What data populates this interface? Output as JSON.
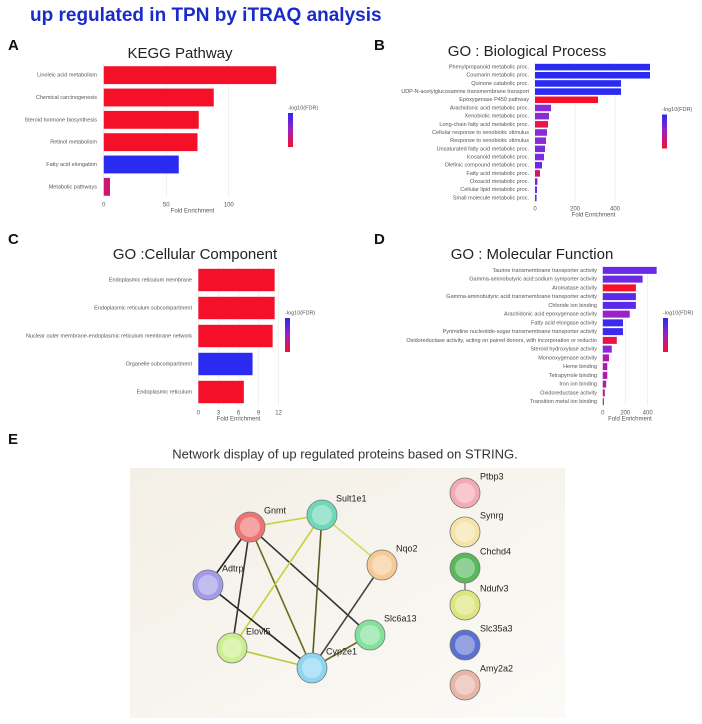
{
  "figure_title": "up regulated in TPN by iTRAQ analysis",
  "chart_data": [
    {
      "type": "barh",
      "panel_label": "A",
      "title": "KEGG Pathway",
      "xlabel": "Fold Enrichment",
      "colorbar_label": "-log10(FDR)",
      "categories": [
        "Linoleic acid metabolism",
        "Chemical carcinogenesis",
        "Steroid hormone biosynthesis",
        "Retinol metabolism",
        "Fatty acid elongation",
        "Metabolic pathways"
      ],
      "values": [
        138,
        88,
        76,
        75,
        60,
        5
      ],
      "colors": [
        "#f5102a",
        "#f5102a",
        "#f5102a",
        "#f5102a",
        "#2a2af0",
        "#d0156e"
      ],
      "xlim": [
        -3,
        145
      ],
      "xticks": [
        0,
        50,
        100
      ],
      "grid": true
    },
    {
      "type": "barh",
      "panel_label": "B",
      "title": "GO : Biological Process",
      "xlabel": "Fold Enrichment",
      "colorbar_label": "-log10(FDR)",
      "categories": [
        "Phenylpropanoid metabolic proc.",
        "Coumarin metabolic proc.",
        "Quinone catabolic proc.",
        "UDP-N-acetylglucosamine transmembrane transport",
        "Epoxygenase P450 pathway",
        "Arachidonic acid metabolic proc.",
        "Xenobiotic metabolic proc.",
        "Long-chain fatty acid metabolic proc.",
        "Cellular response to xenobiotic stimulus",
        "Response to xenobiotic stimulus",
        "Unsaturated fatty acid metabolic proc.",
        "Icosanoid metabolic proc.",
        "Olefinic compound metabolic proc.",
        "Fatty acid metabolic proc.",
        "Oxoacid metabolic proc.",
        "Cellular lipid metabolic proc.",
        "Small molecule metabolic proc."
      ],
      "values": [
        575,
        575,
        430,
        430,
        315,
        80,
        70,
        65,
        60,
        55,
        50,
        45,
        35,
        25,
        12,
        10,
        8
      ],
      "colors": [
        "#2a2af0",
        "#2a2af0",
        "#2a2af0",
        "#2a2af0",
        "#f5102a",
        "#8a2ad8",
        "#8a2ad8",
        "#e8154a",
        "#8a2ad8",
        "#8a2ad8",
        "#7a2ae0",
        "#7a2ae0",
        "#6a2ae5",
        "#d0156e",
        "#6a2ae5",
        "#6a2ae5",
        "#6a2ae5"
      ],
      "xlim": [
        -15,
        600
      ],
      "xticks": [
        0,
        200,
        400
      ],
      "grid": true
    },
    {
      "type": "barh",
      "panel_label": "C",
      "title": "GO :Cellular Component",
      "xlabel": "Fold Enrichment",
      "colorbar_label": "-log10(FDR)",
      "categories": [
        "Endoplasmic reticulum membrane",
        "Endoplasmic reticulum subcompartment",
        "Nuclear outer membrane-endoplasmic reticulum membrane network",
        "Organelle subcompartment",
        "Endoplasmic reticulum"
      ],
      "values": [
        11.4,
        11.4,
        11.1,
        8.1,
        6.8
      ],
      "colors": [
        "#f5102a",
        "#f5102a",
        "#f5102a",
        "#2a2af0",
        "#f5102a"
      ],
      "xlim": [
        -0.5,
        12.5
      ],
      "xticks": [
        0,
        3,
        6,
        9,
        12
      ],
      "grid": true
    },
    {
      "type": "barh",
      "panel_label": "D",
      "title": "GO : Molecular Function",
      "xlabel": "Fold Enrichment",
      "colorbar_label": "-log10(FDR)",
      "categories": [
        "Taurine transmembrane transporter activity",
        "Gamma-aminobutyric acid:sodium symporter activity",
        "Aromatase activity",
        "Gamma-aminobutyric acid transmembrane transporter activity",
        "Chloride ion binding",
        "Arachidonic acid epoxygenase activity",
        "Fatty acid elongase activity",
        "Pyrimidine nucleotide-sugar transmembrane transporter activity",
        "Oxidoreductase activity, acting on paired donors, with incorporation or reductio",
        "Steroid hydroxylase activity",
        "Monooxygenase activity",
        "Heme binding",
        "Tetrapyrrole binding",
        "Iron ion binding",
        "Oxidoreductase activity",
        "Transition metal ion binding"
      ],
      "values": [
        480,
        355,
        295,
        295,
        295,
        240,
        180,
        180,
        125,
        80,
        55,
        40,
        40,
        30,
        18,
        10
      ],
      "colors": [
        "#6a2ae5",
        "#6a2ae5",
        "#f5102a",
        "#5a2ae8",
        "#5a2ae8",
        "#9a20c8",
        "#3a2aee",
        "#3a2aee",
        "#e8154a",
        "#8a2ad8",
        "#b018b0",
        "#b018b0",
        "#b018b0",
        "#b018b0",
        "#c01890",
        "#c01890"
      ],
      "xlim": [
        -25,
        510
      ],
      "xticks": [
        0,
        200,
        400
      ],
      "grid": true
    }
  ],
  "network": {
    "panel_label": "E",
    "title": "Network display of up regulated proteins based on STRING.",
    "nodes": [
      "Gnmt",
      "Sult1e1",
      "Nqo2",
      "Adtrp",
      "Slc6a13",
      "Elovl5",
      "Cyp2e1",
      "Ptbp3",
      "Synrg",
      "Chchd4",
      "Ndufv3",
      "Slc35a3",
      "Amy2a2"
    ]
  }
}
